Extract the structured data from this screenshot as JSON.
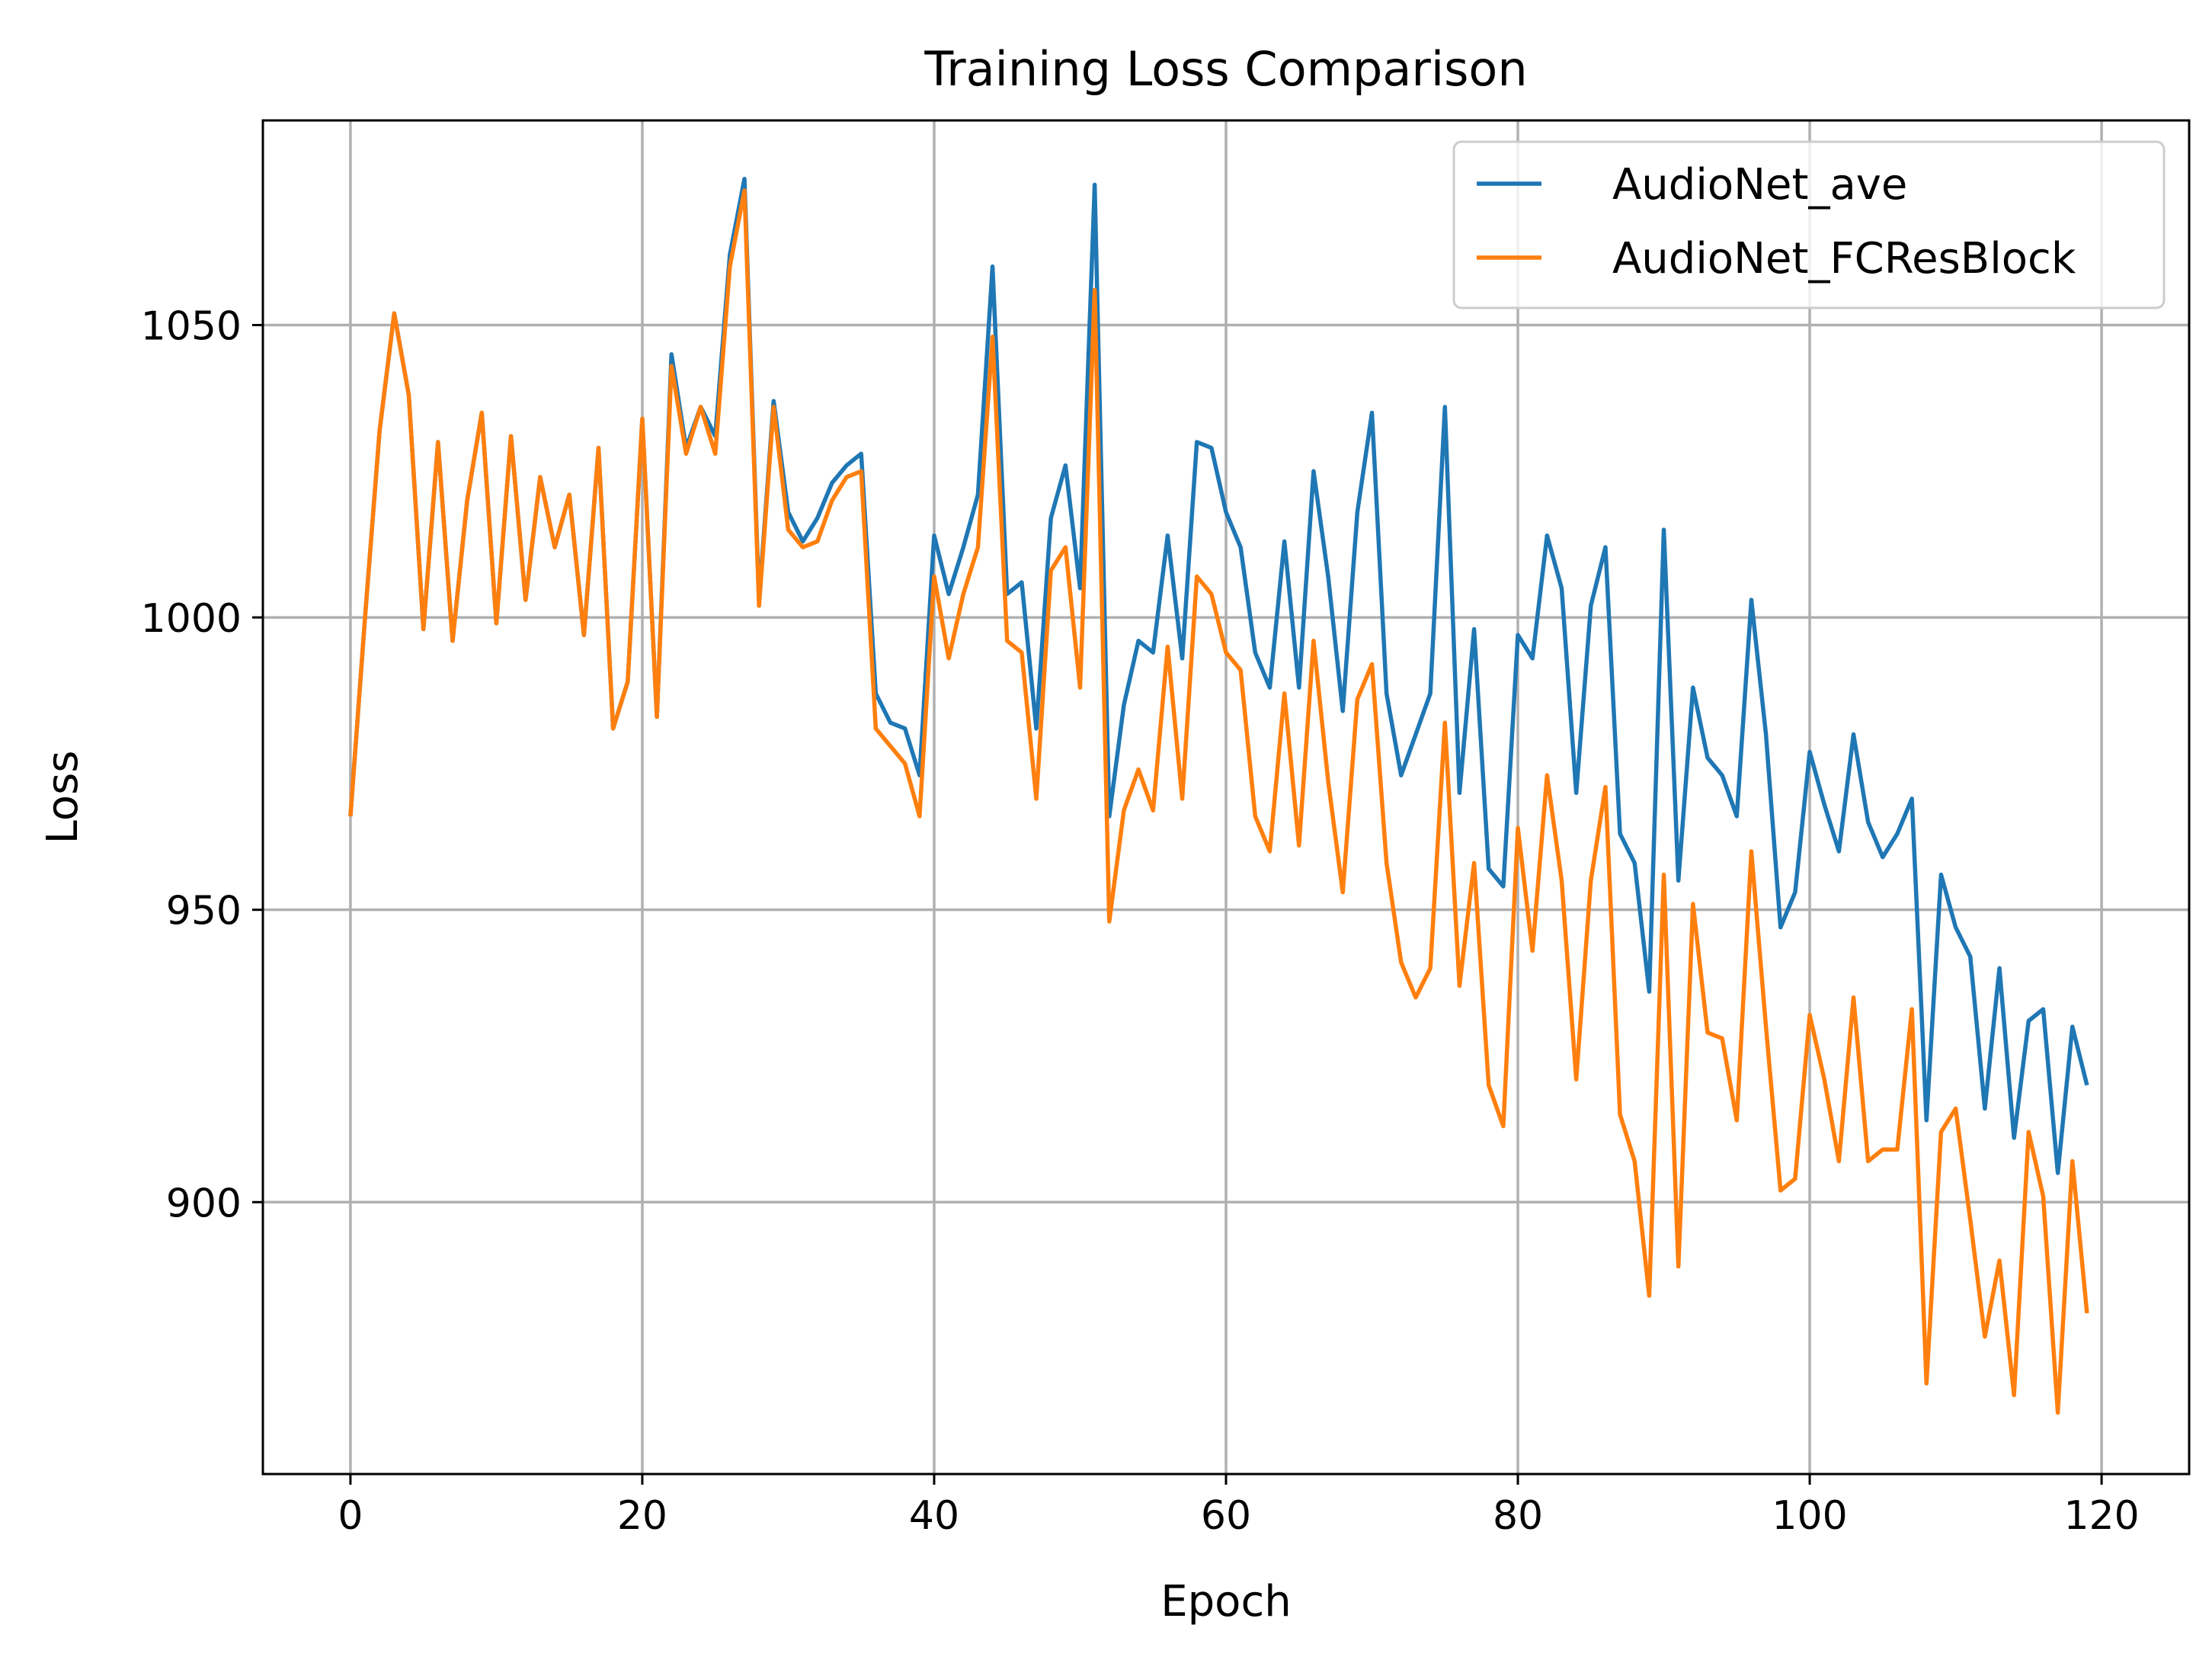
{
  "chart_data": {
    "type": "line",
    "title": "Training Loss Comparison",
    "xlabel": "Epoch",
    "ylabel": "Loss",
    "xlim": [
      -6,
      126
    ],
    "ylim": [
      853.5,
      1085
    ],
    "xticks": [
      0,
      20,
      40,
      60,
      80,
      100,
      120
    ],
    "xtick_labels": [
      "0",
      "20",
      "40",
      "60",
      "80",
      "100",
      "120"
    ],
    "yticks": [
      900,
      950,
      1000,
      1050
    ],
    "ytick_labels": [
      "900",
      "950",
      "1000",
      "1050"
    ],
    "grid": true,
    "legend_position": "top-right",
    "x": [
      0,
      1,
      2,
      3,
      4,
      5,
      6,
      7,
      8,
      9,
      10,
      11,
      12,
      13,
      14,
      15,
      16,
      17,
      18,
      19,
      20,
      21,
      22,
      23,
      24,
      25,
      26,
      27,
      28,
      29,
      30,
      31,
      32,
      33,
      34,
      35,
      36,
      37,
      38,
      39,
      40,
      41,
      42,
      43,
      44,
      45,
      46,
      47,
      48,
      49,
      50,
      51,
      52,
      53,
      54,
      55,
      56,
      57,
      58,
      59,
      60,
      61,
      62,
      63,
      64,
      65,
      66,
      67,
      68,
      69,
      70,
      71,
      72,
      73,
      74,
      75,
      76,
      77,
      78,
      79,
      80,
      81,
      82,
      83,
      84,
      85,
      86,
      87,
      88,
      89,
      90,
      91,
      92,
      93,
      94,
      95,
      96,
      97,
      98,
      99,
      100,
      101,
      102,
      103,
      104,
      105,
      106,
      107,
      108,
      109,
      110,
      111,
      112,
      113,
      114,
      115,
      116,
      117,
      118,
      119
    ],
    "series": [
      {
        "name": "AudioNet_ave",
        "color": "#1f77b4",
        "values": [
          966,
          1000,
          1032,
          1052,
          1038,
          998,
          1030,
          996,
          1020,
          1035,
          999,
          1031,
          1003,
          1024,
          1012,
          1021,
          997,
          1029,
          981,
          989,
          1034,
          983,
          1045,
          1029,
          1036,
          1031,
          1062,
          1075,
          1003,
          1037,
          1018,
          1013,
          1017,
          1023,
          1026,
          1028,
          987,
          982,
          981,
          973,
          1014,
          1004,
          1012,
          1021,
          1060,
          1004,
          1006,
          981,
          1017,
          1026,
          1005,
          1074,
          966,
          985,
          996,
          994,
          1014,
          993,
          1030,
          1029,
          1018,
          1012,
          994,
          988,
          1013,
          988,
          1025,
          1007,
          984,
          1018,
          1035,
          987,
          973,
          980,
          987,
          1036,
          970,
          998,
          957,
          954,
          997,
          993,
          1014,
          1005,
          970,
          1002,
          1012,
          963,
          958,
          936,
          1015,
          955,
          988,
          976,
          973,
          966,
          1003,
          980,
          947,
          953,
          977,
          968,
          960,
          980,
          965,
          959,
          963,
          969,
          914,
          956,
          947,
          942,
          916,
          940,
          911,
          931,
          933,
          905,
          930,
          920
        ]
      },
      {
        "name": "AudioNet_FCResBlock",
        "color": "#ff7f0e",
        "values": [
          966,
          1000,
          1032,
          1052,
          1038,
          998,
          1030,
          996,
          1020,
          1035,
          999,
          1031,
          1003,
          1024,
          1012,
          1021,
          997,
          1029,
          981,
          989,
          1034,
          983,
          1043,
          1028,
          1036,
          1028,
          1060,
          1073,
          1002,
          1036,
          1015,
          1012,
          1013,
          1020,
          1024,
          1025,
          981,
          978,
          975,
          966,
          1007,
          993,
          1004,
          1012,
          1048,
          996,
          994,
          969,
          1008,
          1012,
          988,
          1056,
          948,
          967,
          974,
          967,
          995,
          969,
          1007,
          1004,
          994,
          991,
          966,
          960,
          987,
          961,
          996,
          972,
          953,
          986,
          992,
          958,
          941,
          935,
          940,
          982,
          937,
          958,
          920,
          913,
          964,
          943,
          973,
          955,
          921,
          955,
          971,
          915,
          907,
          884,
          956,
          889,
          951,
          929,
          928,
          914,
          960,
          930,
          902,
          904,
          932,
          921,
          907,
          935,
          907,
          909,
          909,
          933,
          869,
          912,
          916,
          897,
          877,
          890,
          867,
          912,
          901,
          864,
          907,
          881
        ]
      }
    ]
  }
}
